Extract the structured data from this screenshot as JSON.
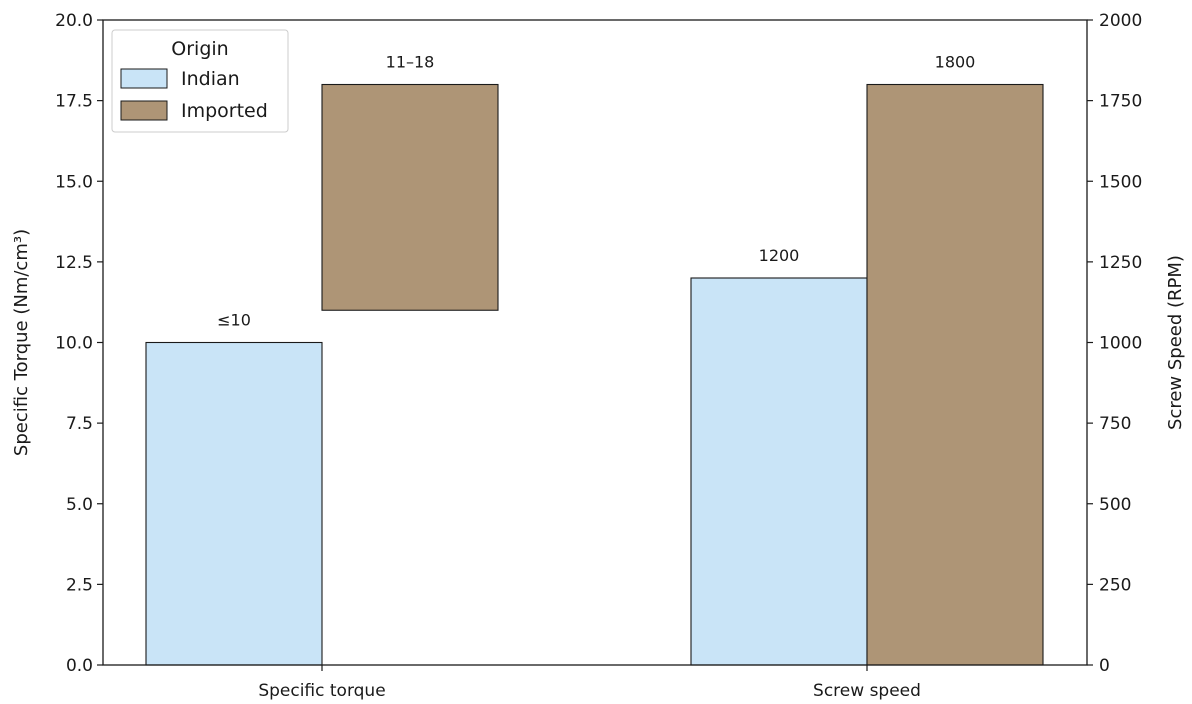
{
  "chart_data": {
    "type": "bar",
    "title": "",
    "categories": [
      "Specific torque",
      "Screw speed"
    ],
    "y_left": {
      "label": "Specific Torque (Nm/cm³)",
      "lim": [
        0,
        20
      ],
      "ticks": [
        "0.0",
        "2.5",
        "5.0",
        "7.5",
        "10.0",
        "12.5",
        "15.0",
        "17.5",
        "20.0"
      ]
    },
    "y_right": {
      "label": "Screw Speed (RPM)",
      "lim": [
        0,
        2000
      ],
      "ticks": [
        "0",
        "250",
        "500",
        "750",
        "1000",
        "1250",
        "1500",
        "1750",
        "2000"
      ]
    },
    "legend": {
      "title": "Origin",
      "position": "top-left"
    },
    "series": [
      {
        "name": "Indian",
        "color": "#c9e4f7",
        "values": [
          {
            "category": "Specific torque",
            "axis": "left",
            "bottom": 0,
            "top": 10,
            "label": "≤10"
          },
          {
            "category": "Screw speed",
            "axis": "right",
            "bottom": 0,
            "top": 1200,
            "label": "1200"
          }
        ]
      },
      {
        "name": "Imported",
        "color": "#ae9576",
        "values": [
          {
            "category": "Specific torque",
            "axis": "left",
            "bottom": 11,
            "top": 18,
            "label": "11–18"
          },
          {
            "category": "Screw speed",
            "axis": "right",
            "bottom": 0,
            "top": 1800,
            "label": "1800"
          }
        ]
      }
    ],
    "grid": false
  }
}
